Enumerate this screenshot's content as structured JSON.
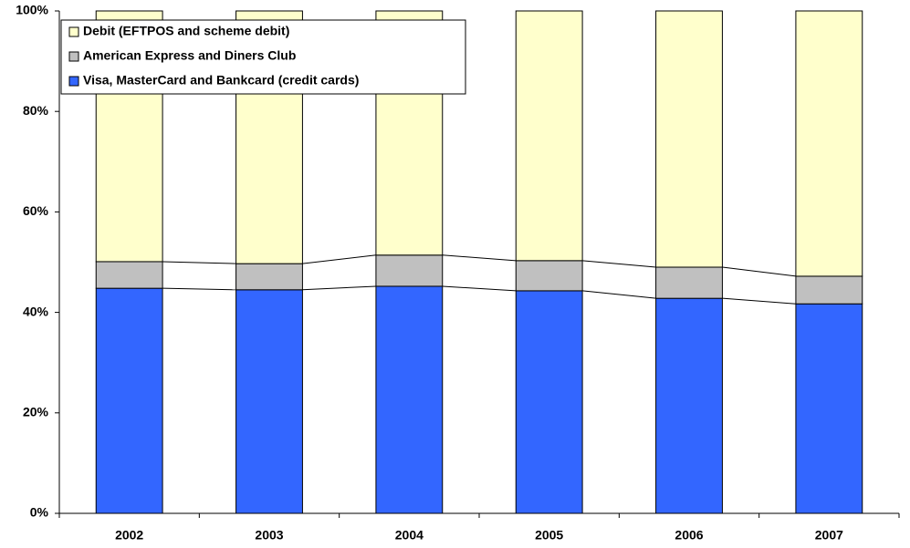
{
  "chart_data": {
    "type": "stacked_bar",
    "categories": [
      "2002",
      "2003",
      "2004",
      "2005",
      "2006",
      "2007"
    ],
    "series": [
      {
        "name": "Visa, MasterCard and Bankcard (credit cards)",
        "color": "#3366ff",
        "values": [
          44.8,
          44.5,
          45.2,
          44.3,
          42.8,
          41.7
        ]
      },
      {
        "name": "American Express and Diners Club",
        "color": "#c0c0c0",
        "values": [
          5.3,
          5.2,
          6.2,
          6.0,
          6.2,
          5.5
        ]
      },
      {
        "name": "Debit (EFTPOS and scheme debit)",
        "color": "#ffffcc",
        "values": [
          49.9,
          50.3,
          48.6,
          49.7,
          51.0,
          52.8
        ]
      }
    ],
    "ylim": [
      0,
      100
    ],
    "yticks": [
      {
        "value": 0,
        "label": "0%"
      },
      {
        "value": 20,
        "label": "20%"
      },
      {
        "value": 40,
        "label": "40%"
      },
      {
        "value": 60,
        "label": "60%"
      },
      {
        "value": 80,
        "label": "80%"
      },
      {
        "value": 100,
        "label": "100%"
      }
    ],
    "grid": false
  }
}
